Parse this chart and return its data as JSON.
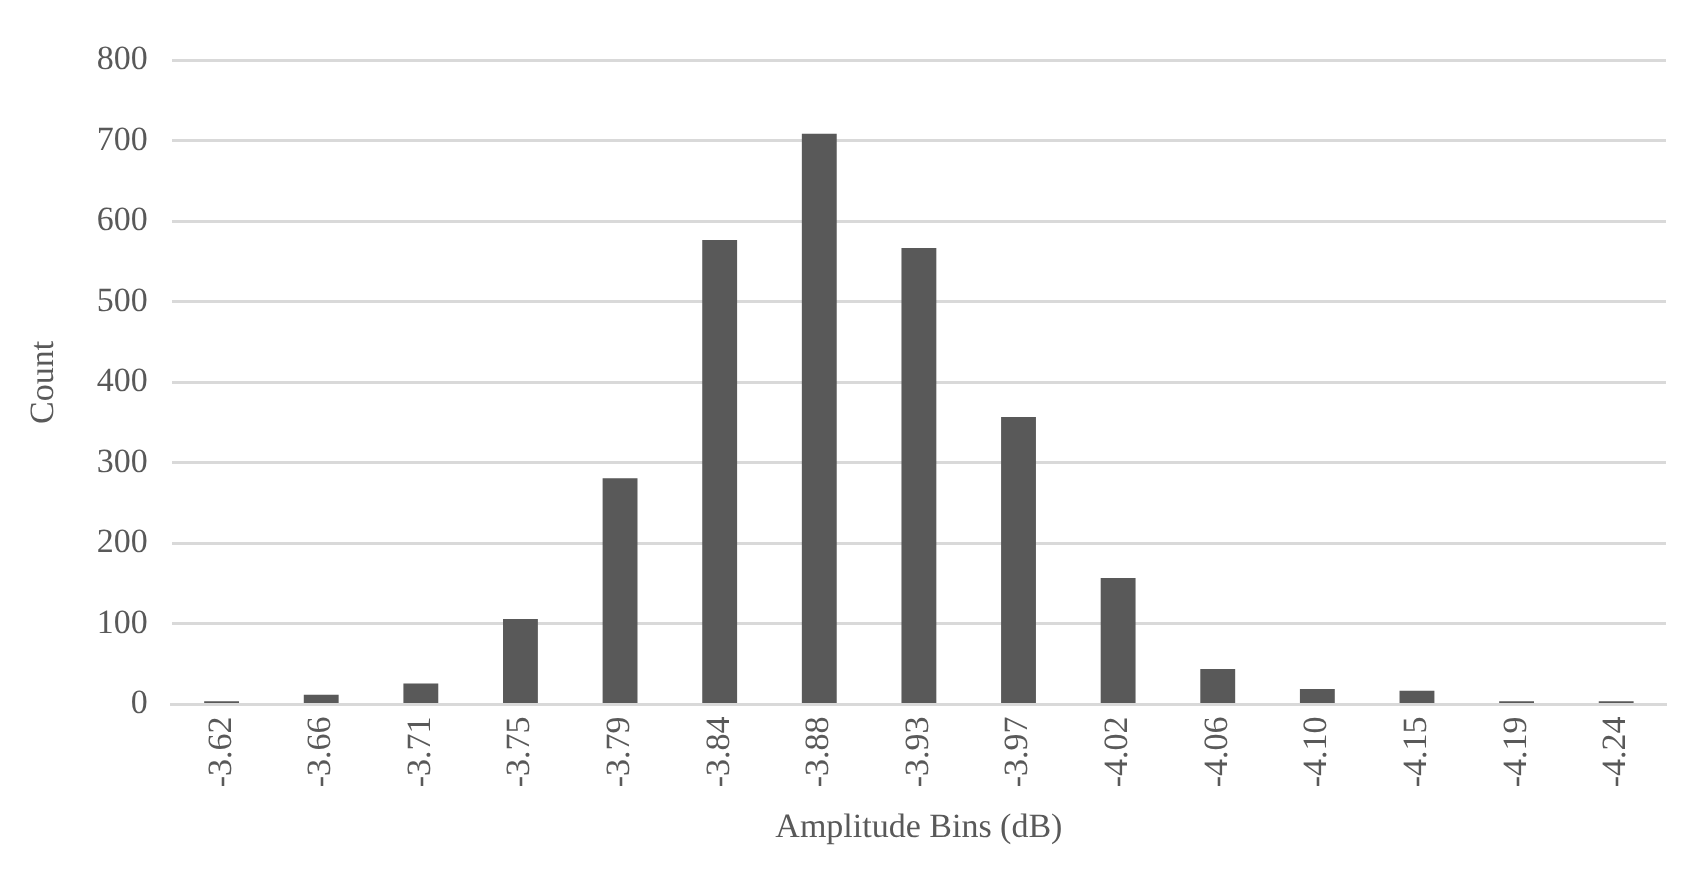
{
  "chart_data": {
    "type": "bar",
    "xlabel": "Amplitude Bins (dB)",
    "ylabel": "Count",
    "categories": [
      "-3.62",
      "-3.66",
      "-3.71",
      "-3.75",
      "-3.79",
      "-3.84",
      "-3.88",
      "-3.93",
      "-3.97",
      "-4.02",
      "-4.06",
      "-4.10",
      "-4.15",
      "-4.19",
      "-4.24"
    ],
    "values": [
      4,
      12,
      26,
      106,
      281,
      577,
      709,
      567,
      357,
      157,
      44,
      19,
      17,
      4,
      4
    ],
    "color": "#595959",
    "ylim": [
      0,
      800
    ],
    "yticks": [
      0,
      100,
      200,
      300,
      400,
      500,
      600,
      700,
      800
    ],
    "grid": "y"
  }
}
